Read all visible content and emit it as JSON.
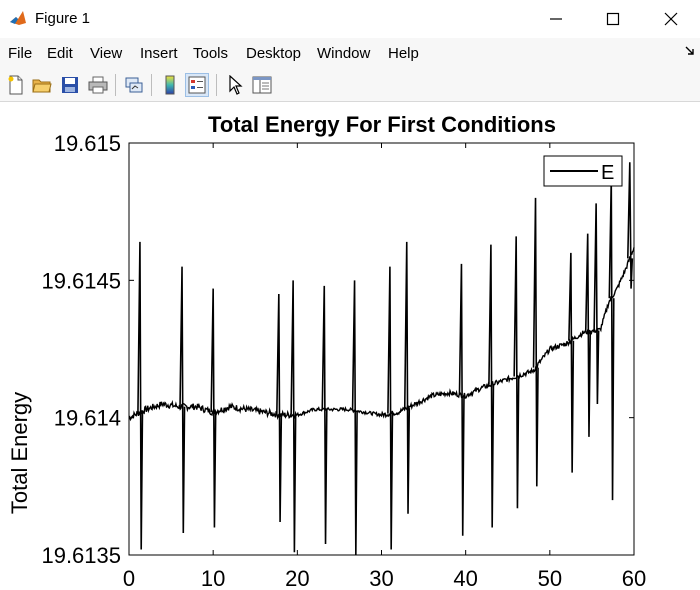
{
  "window": {
    "title": "Figure 1",
    "minimize_icon": "minimize-icon",
    "maximize_icon": "maximize-icon",
    "close_icon": "close-icon"
  },
  "menu": {
    "items": [
      "File",
      "Edit",
      "View",
      "Insert",
      "Tools",
      "Desktop",
      "Window",
      "Help"
    ]
  },
  "toolbar": {
    "icons": [
      "new-figure-icon",
      "open-file-icon",
      "save-icon",
      "print-icon",
      "link-plot-icon",
      "colorbar-icon",
      "legend-icon",
      "pointer-icon",
      "property-editor-icon"
    ],
    "active": "legend-icon"
  },
  "chart_data": {
    "type": "line",
    "title": "Total Energy For First Conditions",
    "xlabel": "",
    "ylabel": "Total Energy",
    "xlim": [
      0,
      60
    ],
    "ylim": [
      19.6135,
      19.615
    ],
    "xticks": [
      "0",
      "10",
      "20",
      "30",
      "40",
      "50",
      "60"
    ],
    "yticks": [
      "19.6135",
      "19.614",
      "19.6145",
      "19.615"
    ],
    "legend": {
      "placement": "top-right",
      "entries": [
        "E"
      ]
    },
    "grid": false,
    "line_color": "#000000",
    "series": [
      {
        "name": "E",
        "x": [
          0,
          2,
          4,
          6,
          8,
          10,
          12,
          14,
          16,
          18,
          20,
          22,
          24,
          26,
          28,
          30,
          32,
          34,
          36,
          38,
          40,
          42,
          44,
          46,
          48,
          50,
          52,
          54,
          56,
          57,
          58,
          59,
          60
        ],
        "y": [
          19.614,
          19.61403,
          19.61405,
          19.61404,
          19.61404,
          19.61402,
          19.61404,
          19.61403,
          19.61402,
          19.61401,
          19.61401,
          19.61403,
          19.61403,
          19.61403,
          19.61402,
          19.61401,
          19.61402,
          19.61405,
          19.61408,
          19.61409,
          19.61408,
          19.61411,
          19.61413,
          19.61415,
          19.61417,
          19.61425,
          19.61427,
          19.61431,
          19.61432,
          19.61442,
          19.61447,
          19.61454,
          19.61462
        ]
      }
    ],
    "spikes": [
      {
        "x": 1.3,
        "high": 19.61464,
        "low": 19.61352
      },
      {
        "x": 6.3,
        "high": 19.61455,
        "low": 19.61358
      },
      {
        "x": 10.0,
        "high": 19.61447,
        "low": 19.6136
      },
      {
        "x": 17.8,
        "high": 19.61445,
        "low": 19.61362
      },
      {
        "x": 19.5,
        "high": 19.6145,
        "low": 19.61351
      },
      {
        "x": 23.2,
        "high": 19.61448,
        "low": 19.61354
      },
      {
        "x": 26.8,
        "high": 19.6145,
        "low": 19.6135
      },
      {
        "x": 31.0,
        "high": 19.61455,
        "low": 19.61352
      },
      {
        "x": 33.0,
        "high": 19.61464,
        "low": 19.61365
      },
      {
        "x": 39.5,
        "high": 19.61456,
        "low": 19.61357
      },
      {
        "x": 43.0,
        "high": 19.61463,
        "low": 19.6136
      },
      {
        "x": 46.0,
        "high": 19.61466,
        "low": 19.61367
      },
      {
        "x": 48.3,
        "high": 19.6148,
        "low": 19.61375
      },
      {
        "x": 52.5,
        "high": 19.6146,
        "low": 19.6138
      },
      {
        "x": 54.5,
        "high": 19.61467,
        "low": 19.61393
      },
      {
        "x": 55.5,
        "high": 19.61478,
        "low": 19.61405
      },
      {
        "x": 57.3,
        "high": 19.61487,
        "low": 19.6137
      },
      {
        "x": 59.5,
        "high": 19.61493,
        "low": 19.61447
      }
    ]
  }
}
